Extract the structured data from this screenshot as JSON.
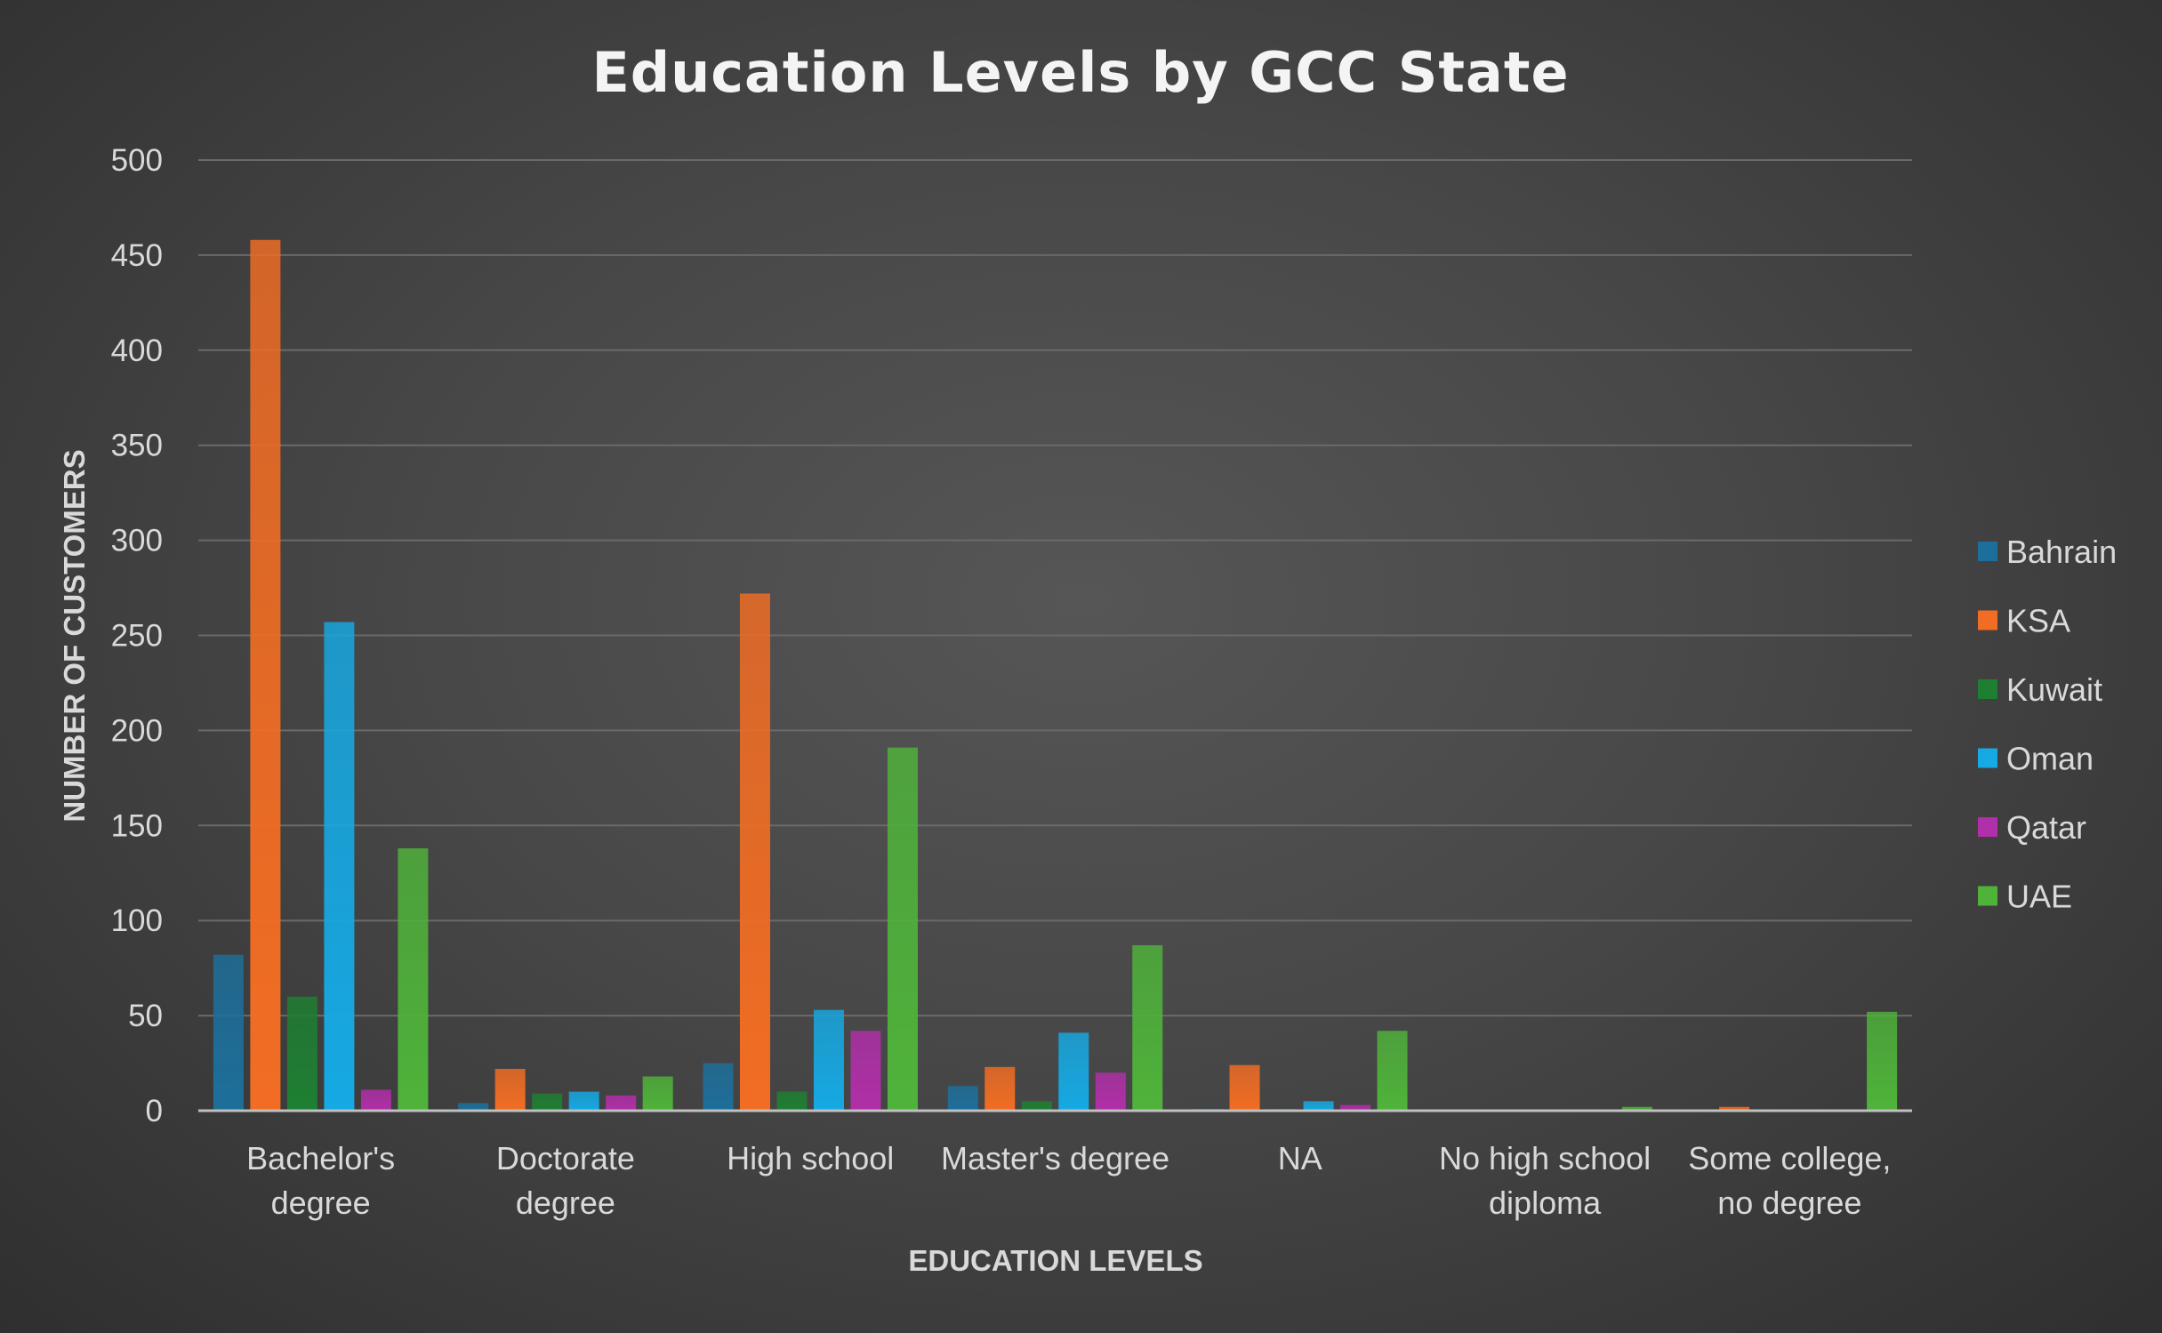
{
  "chart_data": {
    "type": "bar",
    "title": "Education Levels by GCC State",
    "xlabel": "EDUCATION LEVELS",
    "ylabel": "NUMBER OF CUSTOMERS",
    "ylim": [
      0,
      500
    ],
    "yticks": [
      0,
      50,
      100,
      150,
      200,
      250,
      300,
      350,
      400,
      450,
      500
    ],
    "grid": true,
    "legend_position": "right",
    "categories": [
      [
        "Bachelor's",
        "degree"
      ],
      [
        "Doctorate",
        "degree"
      ],
      [
        "High school"
      ],
      [
        "Master's degree"
      ],
      [
        "NA"
      ],
      [
        "No high school",
        "diploma"
      ],
      [
        "Some college,",
        "no degree"
      ]
    ],
    "series": [
      {
        "name": "Bahrain",
        "color": "#1d6f9b",
        "values": [
          82,
          4,
          25,
          13,
          1,
          0,
          0
        ]
      },
      {
        "name": "KSA",
        "color": "#f26d23",
        "values": [
          458,
          22,
          272,
          23,
          24,
          0,
          2
        ]
      },
      {
        "name": "Kuwait",
        "color": "#1e7f32",
        "values": [
          60,
          9,
          10,
          5,
          1,
          0,
          0
        ]
      },
      {
        "name": "Oman",
        "color": "#16a9e3",
        "values": [
          257,
          10,
          53,
          41,
          5,
          0,
          0
        ]
      },
      {
        "name": "Qatar",
        "color": "#b12fa8",
        "values": [
          11,
          8,
          42,
          20,
          3,
          0,
          0
        ]
      },
      {
        "name": "UAE",
        "color": "#4fb33a",
        "values": [
          138,
          18,
          191,
          87,
          42,
          2,
          52
        ]
      }
    ]
  }
}
